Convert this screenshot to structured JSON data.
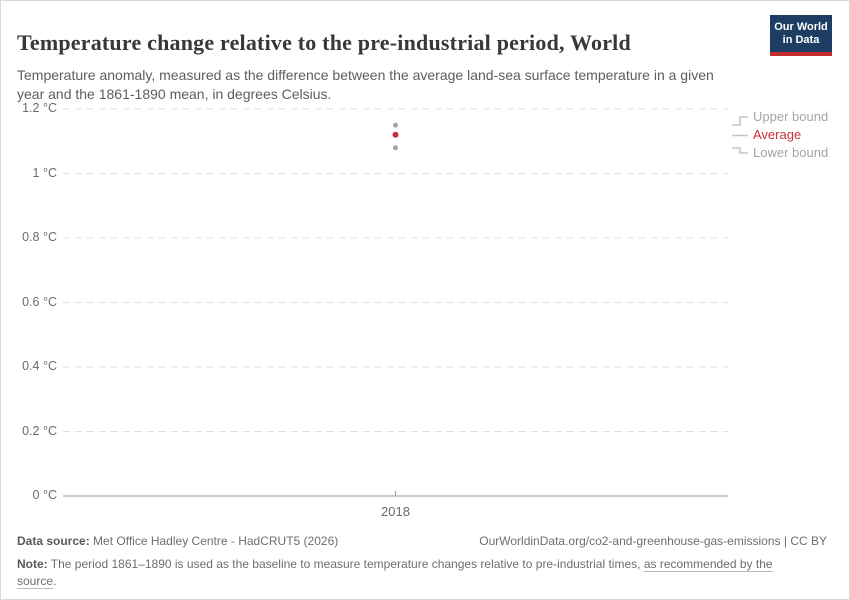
{
  "header": {
    "title": "Temperature change relative to the pre-industrial period, World",
    "subtitle": "Temperature anomaly, measured as the difference between the average land-sea surface temperature in a given year and the 1861-1890 mean, in degrees Celsius.",
    "logo": {
      "line1": "Our World",
      "line2": "in Data",
      "bg_color": "#1d3d63",
      "accent_color": "#c32e2d"
    }
  },
  "chart_data": {
    "type": "scatter",
    "title": "Temperature change relative to the pre-industrial period, World",
    "x": [
      2018
    ],
    "xtick_labels": [
      "2018"
    ],
    "series": [
      {
        "name": "Upper bound",
        "values": [
          1.15
        ],
        "color": "#a6a6a6",
        "label_color": "#a5a5a5"
      },
      {
        "name": "Average",
        "values": [
          1.12
        ],
        "color": "#cb2f3a",
        "label_color": "#cb2f3a"
      },
      {
        "name": "Lower bound",
        "values": [
          1.08
        ],
        "color": "#a6a6a6",
        "label_color": "#a5a5a5"
      }
    ],
    "ylim": [
      0,
      1.2
    ],
    "yticks": [
      0,
      0.2,
      0.4,
      0.6,
      0.8,
      1.0,
      1.2
    ],
    "ytick_labels": [
      "0 °C",
      "0.2 °C",
      "0.4 °C",
      "0.6 °C",
      "0.8 °C",
      "1 °C",
      "1.2 °C"
    ],
    "xlabel": "",
    "ylabel": "",
    "grid": "horizontal-dashed",
    "legend_position": "right",
    "colors": {
      "grid": "#e0e0e0",
      "axis": "#9a9a9a",
      "tick_label": "#6b6b6b"
    }
  },
  "footer": {
    "datasource_label": "Data source:",
    "datasource_value": " Met Office Hadley Centre - HadCRUT5 (2026)",
    "attribution_link": "OurWorldinData.org/co2-and-greenhouse-gas-emissions",
    "attribution_suffix": " | CC BY",
    "note_label": "Note:",
    "note_text": " The period 1861–1890 is used as the baseline to measure temperature changes relative to pre-industrial times, ",
    "note_link": "as recommended by the source",
    "note_suffix": "."
  }
}
